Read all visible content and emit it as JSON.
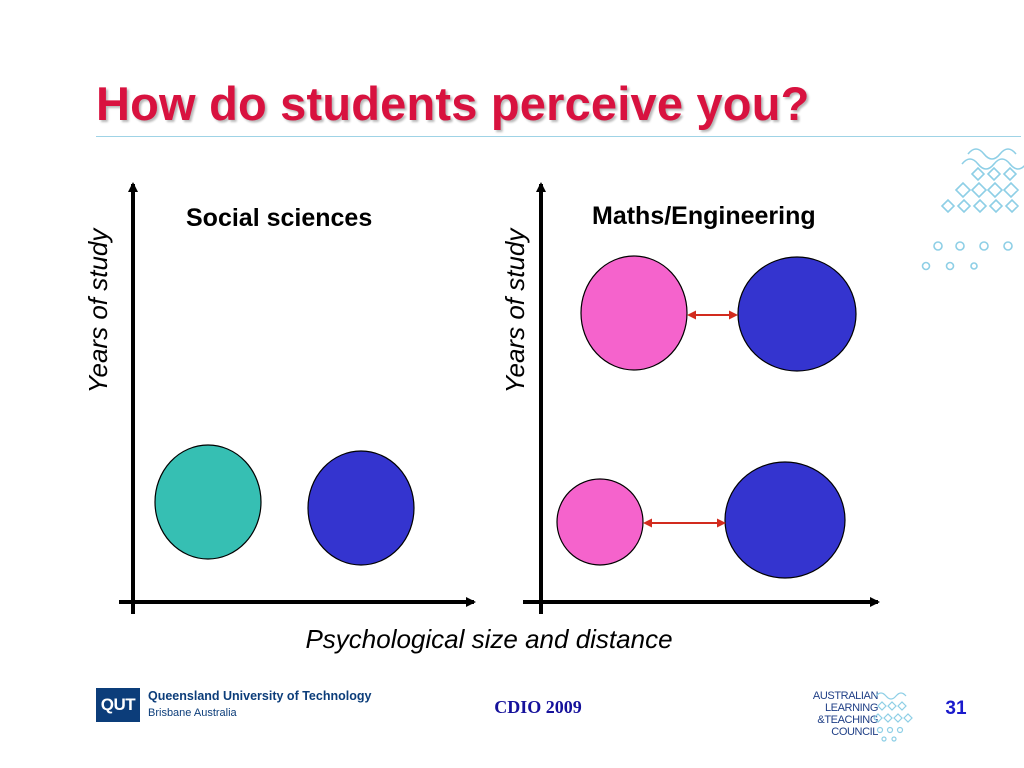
{
  "slide": {
    "title": "How do students perceive you?",
    "number": "31"
  },
  "colors": {
    "title": "#d8123f",
    "teal_circle": "#36bfb3",
    "pink_circle": "#f563cc",
    "blue_circle": "#3434cf",
    "arrow": "#d22b1e"
  },
  "diagram": {
    "left_panel": {
      "title": "Social sciences",
      "y_label": "Years of study"
    },
    "right_panel": {
      "title": "Maths/Engineering",
      "y_label": "Years of study"
    },
    "x_label": "Psychological size and distance"
  },
  "footer": {
    "qut_logo": "QUT",
    "qut_name": "Queensland University of Technology",
    "qut_location": "Brisbane Australia",
    "event": "CDIO 2009",
    "council": [
      "AUSTRALIAN",
      "LEARNING",
      "&TEACHING",
      "COUNCIL"
    ]
  }
}
